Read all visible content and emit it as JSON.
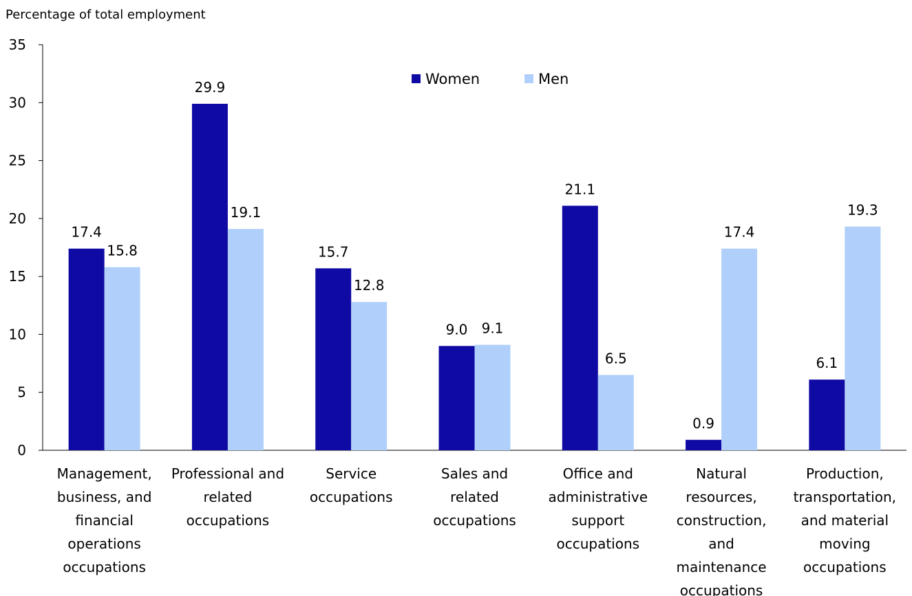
{
  "chart_data": {
    "type": "bar",
    "ylabel": "Percentage of total employment",
    "ylim": [
      0,
      35
    ],
    "yticks": [
      0,
      5,
      10,
      15,
      20,
      25,
      30,
      35
    ],
    "categories": [
      "Management, business, and financial operations occupations",
      "Professional and related occupations",
      "Service occupations",
      "Sales and related occupations",
      "Office and administrative support occupations",
      "Natural resources, construction, and maintenance occupations",
      "Production, transportation, and material moving occupations"
    ],
    "category_lines": [
      [
        "Management,",
        "business, and",
        "financial",
        "operations",
        "occupations"
      ],
      [
        "Professional and",
        "related",
        "occupations"
      ],
      [
        "Service",
        "occupations"
      ],
      [
        "Sales and",
        "related",
        "occupations"
      ],
      [
        "Office and",
        "administrative",
        "support",
        "occupations"
      ],
      [
        "Natural",
        "resources,",
        "construction,",
        "and",
        "maintenance",
        "occupations"
      ],
      [
        "Production,",
        "transportation,",
        "and material",
        "moving",
        "occupations"
      ]
    ],
    "series": [
      {
        "name": "Women",
        "color": "#0f0aa3",
        "values": [
          17.4,
          29.9,
          15.7,
          9.0,
          21.1,
          0.9,
          6.1
        ],
        "labels": [
          "17.4",
          "29.9",
          "15.7",
          "9.0",
          "21.1",
          "0.9",
          "6.1"
        ]
      },
      {
        "name": "Men",
        "color": "#b0d0fb",
        "values": [
          15.8,
          19.1,
          12.8,
          9.1,
          6.5,
          17.4,
          19.3
        ],
        "labels": [
          "15.8",
          "19.1",
          "12.8",
          "9.1",
          "6.5",
          "17.4",
          "19.3"
        ]
      }
    ],
    "legend": "top-center",
    "grid": false
  }
}
